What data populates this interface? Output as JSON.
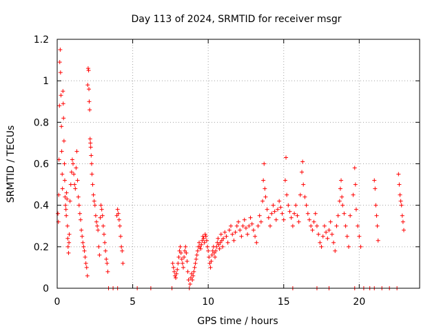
{
  "chart_data": {
    "type": "scatter",
    "title": "Day 113 of 2024, SRMTID for receiver msgr",
    "xlabel": "GPS time / hours",
    "ylabel": "SRMTID / TECUs",
    "xlim": [
      0,
      24
    ],
    "ylim": [
      0,
      1.2
    ],
    "xticks": [
      0,
      5,
      10,
      15,
      20
    ],
    "yticks": [
      0,
      0.2,
      0.4,
      0.6,
      0.8,
      1,
      1.2
    ],
    "xtick_labels": [
      "0",
      "5",
      "10",
      "15",
      "20"
    ],
    "ytick_labels": [
      "0",
      "0.2",
      "0.4",
      "0.6",
      "0.8",
      "1",
      "1.2"
    ],
    "grid": true,
    "marker": "+",
    "series": [
      {
        "name": "SRMTID",
        "color": "#ff0000",
        "points": [
          [
            0.05,
            0.36
          ],
          [
            0.08,
            0.32
          ],
          [
            0.1,
            0.45
          ],
          [
            0.12,
            0.62
          ],
          [
            0.15,
            0.88
          ],
          [
            0.17,
            1.09
          ],
          [
            0.2,
            1.15
          ],
          [
            0.22,
            1.04
          ],
          [
            0.25,
            0.93
          ],
          [
            0.28,
            0.78
          ],
          [
            0.3,
            0.66
          ],
          [
            0.33,
            0.55
          ],
          [
            0.35,
            0.48
          ],
          [
            0.38,
            0.95
          ],
          [
            0.4,
            0.89
          ],
          [
            0.42,
            0.82
          ],
          [
            0.45,
            0.71
          ],
          [
            0.48,
            0.6
          ],
          [
            0.5,
            0.52
          ],
          [
            0.52,
            0.44
          ],
          [
            0.55,
            0.4
          ],
          [
            0.58,
            0.38
          ],
          [
            0.6,
            0.35
          ],
          [
            0.62,
            0.46
          ],
          [
            0.65,
            0.43
          ],
          [
            0.68,
            0.3
          ],
          [
            0.7,
            0.24
          ],
          [
            0.72,
            0.2
          ],
          [
            0.75,
            0.17
          ],
          [
            0.78,
            0.22
          ],
          [
            0.8,
            0.26
          ],
          [
            0.85,
            0.42
          ],
          [
            0.9,
            0.5
          ],
          [
            0.95,
            0.56
          ],
          [
            1.0,
            0.62
          ],
          [
            1.05,
            0.6
          ],
          [
            1.1,
            0.55
          ],
          [
            1.15,
            0.5
          ],
          [
            1.2,
            0.48
          ],
          [
            1.25,
            0.58
          ],
          [
            1.3,
            0.66
          ],
          [
            1.35,
            0.52
          ],
          [
            1.4,
            0.44
          ],
          [
            1.45,
            0.4
          ],
          [
            1.5,
            0.36
          ],
          [
            1.55,
            0.33
          ],
          [
            1.6,
            0.28
          ],
          [
            1.65,
            0.25
          ],
          [
            1.7,
            0.22
          ],
          [
            1.75,
            0.2
          ],
          [
            1.8,
            0.18
          ],
          [
            1.85,
            0.15
          ],
          [
            1.9,
            0.12
          ],
          [
            1.95,
            0.1
          ],
          [
            2.0,
            0.06
          ],
          [
            2.02,
            0.98
          ],
          [
            2.05,
            1.06
          ],
          [
            2.08,
            1.05
          ],
          [
            2.1,
            0.96
          ],
          [
            2.12,
            0.9
          ],
          [
            2.15,
            0.86
          ],
          [
            2.18,
            0.72
          ],
          [
            2.2,
            0.7
          ],
          [
            2.22,
            0.68
          ],
          [
            2.25,
            0.64
          ],
          [
            2.28,
            0.6
          ],
          [
            2.3,
            0.55
          ],
          [
            2.35,
            0.5
          ],
          [
            2.4,
            0.45
          ],
          [
            2.45,
            0.42
          ],
          [
            2.5,
            0.4
          ],
          [
            2.55,
            0.35
          ],
          [
            2.6,
            0.32
          ],
          [
            2.65,
            0.3
          ],
          [
            2.7,
            0.28
          ],
          [
            2.75,
            0.2
          ],
          [
            2.8,
            0.16
          ],
          [
            2.85,
            0.34
          ],
          [
            2.9,
            0.4
          ],
          [
            2.95,
            0.38
          ],
          [
            3.0,
            0.35
          ],
          [
            3.05,
            0.3
          ],
          [
            3.1,
            0.26
          ],
          [
            3.15,
            0.22
          ],
          [
            3.2,
            0.18
          ],
          [
            3.25,
            0.14
          ],
          [
            3.3,
            0.12
          ],
          [
            3.35,
            0.08
          ],
          [
            3.4,
            0.0
          ],
          [
            3.7,
            0.0
          ],
          [
            3.95,
            0.35
          ],
          [
            4.0,
            0.38
          ],
          [
            4.05,
            0.36
          ],
          [
            4.1,
            0.33
          ],
          [
            4.15,
            0.3
          ],
          [
            4.2,
            0.25
          ],
          [
            4.25,
            0.2
          ],
          [
            4.3,
            0.18
          ],
          [
            4.35,
            0.12
          ],
          [
            4.0,
            0.0
          ],
          [
            5.3,
            0.0
          ],
          [
            6.2,
            0.0
          ],
          [
            7.6,
            0.0
          ],
          [
            7.65,
            0.12
          ],
          [
            7.7,
            0.1
          ],
          [
            7.75,
            0.08
          ],
          [
            7.8,
            0.06
          ],
          [
            7.85,
            0.05
          ],
          [
            7.9,
            0.07
          ],
          [
            7.95,
            0.09
          ],
          [
            8.0,
            0.12
          ],
          [
            8.05,
            0.15
          ],
          [
            8.1,
            0.18
          ],
          [
            8.15,
            0.2
          ],
          [
            8.2,
            0.17
          ],
          [
            8.25,
            0.14
          ],
          [
            8.3,
            0.12
          ],
          [
            8.35,
            0.1
          ],
          [
            8.4,
            0.15
          ],
          [
            8.45,
            0.18
          ],
          [
            8.5,
            0.2
          ],
          [
            8.55,
            0.17
          ],
          [
            8.6,
            0.13
          ],
          [
            8.65,
            0.08
          ],
          [
            8.7,
            0.04
          ],
          [
            8.75,
            0.0
          ],
          [
            8.8,
            0.02
          ],
          [
            8.85,
            0.05
          ],
          [
            8.9,
            0.07
          ],
          [
            8.95,
            0.04
          ],
          [
            9.0,
            0.06
          ],
          [
            9.05,
            0.08
          ],
          [
            9.1,
            0.1
          ],
          [
            9.15,
            0.12
          ],
          [
            9.2,
            0.14
          ],
          [
            9.25,
            0.16
          ],
          [
            9.3,
            0.18
          ],
          [
            9.35,
            0.2
          ],
          [
            9.4,
            0.22
          ],
          [
            9.45,
            0.2
          ],
          [
            9.5,
            0.19
          ],
          [
            9.55,
            0.21
          ],
          [
            9.6,
            0.23
          ],
          [
            9.65,
            0.25
          ],
          [
            9.7,
            0.24
          ],
          [
            9.75,
            0.22
          ],
          [
            9.8,
            0.26
          ],
          [
            9.85,
            0.25
          ],
          [
            9.9,
            0.23
          ],
          [
            9.95,
            0.2
          ],
          [
            10.0,
            0.18
          ],
          [
            10.05,
            0.15
          ],
          [
            10.1,
            0.12
          ],
          [
            10.15,
            0.1
          ],
          [
            10.2,
            0.13
          ],
          [
            10.25,
            0.16
          ],
          [
            10.3,
            0.18
          ],
          [
            10.35,
            0.2
          ],
          [
            10.4,
            0.17
          ],
          [
            10.45,
            0.15
          ],
          [
            10.5,
            0.18
          ],
          [
            10.55,
            0.2
          ],
          [
            10.6,
            0.22
          ],
          [
            10.65,
            0.24
          ],
          [
            10.7,
            0.21
          ],
          [
            10.75,
            0.19
          ],
          [
            10.8,
            0.22
          ],
          [
            10.85,
            0.26
          ],
          [
            10.9,
            0.23
          ],
          [
            10.95,
            0.2
          ],
          [
            11.0,
            0.24
          ],
          [
            11.1,
            0.27
          ],
          [
            11.2,
            0.25
          ],
          [
            11.3,
            0.22
          ],
          [
            11.4,
            0.28
          ],
          [
            11.5,
            0.3
          ],
          [
            11.6,
            0.26
          ],
          [
            11.7,
            0.23
          ],
          [
            11.8,
            0.27
          ],
          [
            11.9,
            0.3
          ],
          [
            12.0,
            0.32
          ],
          [
            12.1,
            0.28
          ],
          [
            12.2,
            0.25
          ],
          [
            12.3,
            0.3
          ],
          [
            12.4,
            0.33
          ],
          [
            12.5,
            0.29
          ],
          [
            12.6,
            0.26
          ],
          [
            12.7,
            0.3
          ],
          [
            12.8,
            0.34
          ],
          [
            12.9,
            0.31
          ],
          [
            13.0,
            0.28
          ],
          [
            13.1,
            0.25
          ],
          [
            13.2,
            0.22
          ],
          [
            13.3,
            0.3
          ],
          [
            13.4,
            0.35
          ],
          [
            13.5,
            0.32
          ],
          [
            13.6,
            0.42
          ],
          [
            13.65,
            0.52
          ],
          [
            13.7,
            0.6
          ],
          [
            13.75,
            0.48
          ],
          [
            13.8,
            0.44
          ],
          [
            13.9,
            0.38
          ],
          [
            14.0,
            0.34
          ],
          [
            14.1,
            0.3
          ],
          [
            14.2,
            0.36
          ],
          [
            14.3,
            0.4
          ],
          [
            14.4,
            0.37
          ],
          [
            14.5,
            0.33
          ],
          [
            14.6,
            0.38
          ],
          [
            14.7,
            0.42
          ],
          [
            14.8,
            0.39
          ],
          [
            14.9,
            0.36
          ],
          [
            15.0,
            0.33
          ],
          [
            15.1,
            0.52
          ],
          [
            15.15,
            0.63
          ],
          [
            15.2,
            0.45
          ],
          [
            15.3,
            0.4
          ],
          [
            15.4,
            0.37
          ],
          [
            15.5,
            0.34
          ],
          [
            15.6,
            0.3
          ],
          [
            15.7,
            0.36
          ],
          [
            15.8,
            0.4
          ],
          [
            15.9,
            0.35
          ],
          [
            16.0,
            0.32
          ],
          [
            16.1,
            0.45
          ],
          [
            16.2,
            0.56
          ],
          [
            16.25,
            0.61
          ],
          [
            16.3,
            0.5
          ],
          [
            16.4,
            0.44
          ],
          [
            16.5,
            0.4
          ],
          [
            16.6,
            0.36
          ],
          [
            16.7,
            0.33
          ],
          [
            16.8,
            0.3
          ],
          [
            16.9,
            0.28
          ],
          [
            17.0,
            0.32
          ],
          [
            17.1,
            0.36
          ],
          [
            17.2,
            0.3
          ],
          [
            17.3,
            0.26
          ],
          [
            17.4,
            0.22
          ],
          [
            17.5,
            0.2
          ],
          [
            17.6,
            0.25
          ],
          [
            17.7,
            0.3
          ],
          [
            17.8,
            0.27
          ],
          [
            17.9,
            0.24
          ],
          [
            18.0,
            0.28
          ],
          [
            18.1,
            0.32
          ],
          [
            18.2,
            0.26
          ],
          [
            18.3,
            0.22
          ],
          [
            18.4,
            0.18
          ],
          [
            18.5,
            0.3
          ],
          [
            18.6,
            0.35
          ],
          [
            18.7,
            0.42
          ],
          [
            18.75,
            0.48
          ],
          [
            18.8,
            0.52
          ],
          [
            18.85,
            0.44
          ],
          [
            18.9,
            0.4
          ],
          [
            19.0,
            0.36
          ],
          [
            19.1,
            0.3
          ],
          [
            19.2,
            0.25
          ],
          [
            19.3,
            0.2
          ],
          [
            19.4,
            0.35
          ],
          [
            19.6,
            0.45
          ],
          [
            19.7,
            0.58
          ],
          [
            19.75,
            0.5
          ],
          [
            19.8,
            0.38
          ],
          [
            19.9,
            0.3
          ],
          [
            20.0,
            0.25
          ],
          [
            20.1,
            0.2
          ],
          [
            21.0,
            0.52
          ],
          [
            21.05,
            0.48
          ],
          [
            21.1,
            0.4
          ],
          [
            21.15,
            0.35
          ],
          [
            21.2,
            0.3
          ],
          [
            21.25,
            0.23
          ],
          [
            22.6,
            0.55
          ],
          [
            22.65,
            0.5
          ],
          [
            22.7,
            0.45
          ],
          [
            22.75,
            0.42
          ],
          [
            22.8,
            0.4
          ],
          [
            22.85,
            0.35
          ],
          [
            22.9,
            0.32
          ],
          [
            22.95,
            0.28
          ],
          [
            15.6,
            0.0
          ],
          [
            17.2,
            0.0
          ],
          [
            18.0,
            0.0
          ],
          [
            19.7,
            0.0
          ],
          [
            20.3,
            0.0
          ],
          [
            20.7,
            0.0
          ],
          [
            21.0,
            0.0
          ],
          [
            21.5,
            0.0
          ],
          [
            22.0,
            0.0
          ],
          [
            22.5,
            0.0
          ]
        ]
      }
    ]
  }
}
